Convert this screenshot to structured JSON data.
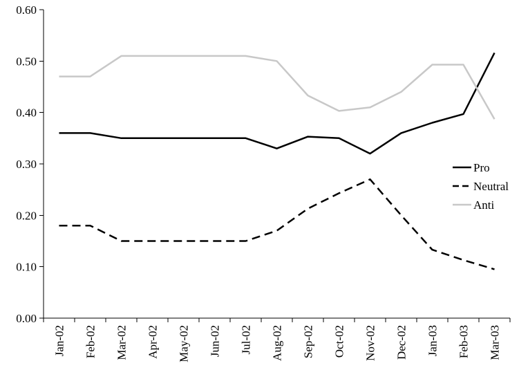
{
  "chart_data": {
    "type": "line",
    "title": "",
    "xlabel": "",
    "ylabel": "",
    "categories": [
      "Jan-02",
      "Feb-02",
      "Mar-02",
      "Apr-02",
      "May-02",
      "Jun-02",
      "Jul-02",
      "Aug-02",
      "Sep-02",
      "Oct-02",
      "Nov-02",
      "Dec-02",
      "Jan-03",
      "Feb-03",
      "Mar-03"
    ],
    "ylim": [
      0,
      0.6
    ],
    "yticks": [
      "0.00",
      "0.10",
      "0.20",
      "0.30",
      "0.40",
      "0.50",
      "0.60"
    ],
    "grid": false,
    "legend_position": "right",
    "series": [
      {
        "name": "Pro",
        "color": "#000000",
        "dash": "solid",
        "values": [
          0.36,
          0.36,
          0.35,
          0.35,
          0.35,
          0.35,
          0.35,
          0.33,
          0.353,
          0.35,
          0.32,
          0.36,
          0.38,
          0.397,
          0.516
        ]
      },
      {
        "name": "Neutral",
        "color": "#000000",
        "dash": "dashed",
        "values": [
          0.18,
          0.18,
          0.15,
          0.15,
          0.15,
          0.15,
          0.15,
          0.17,
          0.213,
          0.243,
          0.27,
          0.2,
          0.133,
          0.113,
          0.095
        ]
      },
      {
        "name": "Anti",
        "color": "#c8c8c8",
        "dash": "solid",
        "values": [
          0.47,
          0.47,
          0.51,
          0.51,
          0.51,
          0.51,
          0.51,
          0.5,
          0.433,
          0.403,
          0.41,
          0.44,
          0.493,
          0.493,
          0.387
        ]
      }
    ]
  }
}
